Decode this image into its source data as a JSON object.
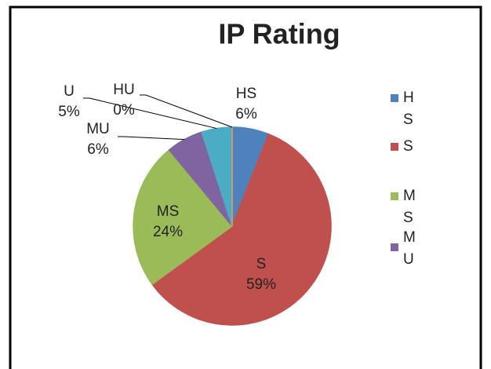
{
  "chart_data": {
    "type": "pie",
    "title": "IP Rating",
    "categories": [
      "HS",
      "S",
      "MS",
      "MU",
      "U",
      "HU"
    ],
    "values": [
      6,
      59,
      24,
      6,
      5,
      0
    ],
    "value_labels": [
      "6%",
      "59%",
      "24%",
      "6%",
      "5%",
      "0%"
    ],
    "colors": [
      "#4f81bd",
      "#c0504d",
      "#9bbb59",
      "#8064a2",
      "#4bacc6",
      "#f79646"
    ],
    "legend": "right"
  }
}
